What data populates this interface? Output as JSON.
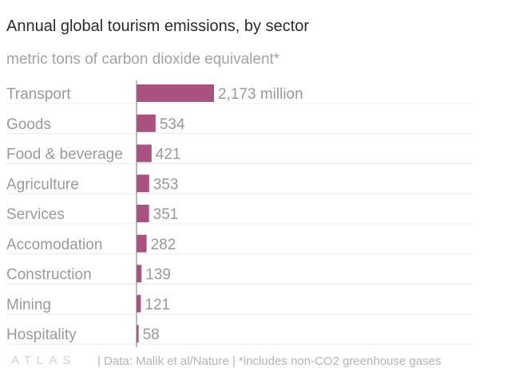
{
  "header": {
    "title": "Annual global tourism emissions, by sector",
    "subtitle": "metric tons of carbon dioxide equivalent*"
  },
  "footer": {
    "logo": "ATLAS",
    "source": "| Data: Malik et al/Nature | *includes non-CO2 greenhouse gases"
  },
  "colors": {
    "bar": "#a9527f",
    "category_text": "#9a9a9a",
    "value_text": "#9a9a9a",
    "gridline": "#ececec",
    "axis": "#7a7a7a"
  },
  "chart_data": {
    "type": "bar",
    "orientation": "horizontal",
    "title": "Annual global tourism emissions, by sector",
    "subtitle": "metric tons of carbon dioxide equivalent*",
    "categories": [
      "Transport",
      "Goods",
      "Food & beverage",
      "Agriculture",
      "Services",
      "Accomodation",
      "Construction",
      "Mining",
      "Hospitality"
    ],
    "values": [
      2173,
      534,
      421,
      353,
      351,
      282,
      139,
      121,
      58
    ],
    "value_labels": [
      "2,173 million",
      "534",
      "421",
      "353",
      "351",
      "282",
      "139",
      "121",
      "58"
    ],
    "xlim": [
      0,
      2173
    ],
    "grid": true,
    "legend": "none"
  }
}
